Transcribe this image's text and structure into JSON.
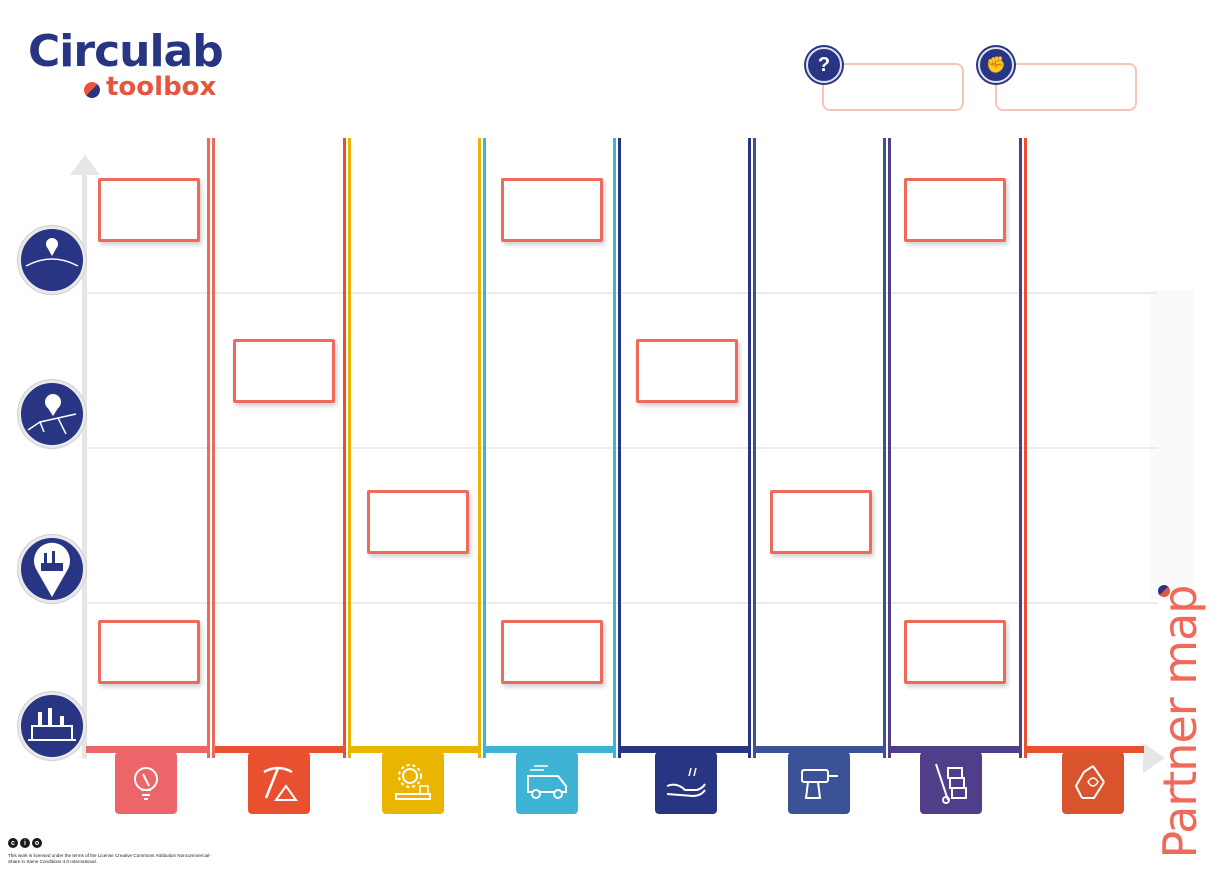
{
  "brand": {
    "name": "Circulab",
    "sub": "toolbox",
    "colors": {
      "navy": "#283583",
      "coral": "#e8553e",
      "note_border": "#ef6a5a"
    }
  },
  "header_fields": [
    {
      "icon": "question-icon",
      "glyph": "?",
      "value": ""
    },
    {
      "icon": "handshake-icon",
      "glyph": "✊",
      "value": ""
    }
  ],
  "title": "Partner map",
  "levels": [
    {
      "name": "global-level-icon"
    },
    {
      "name": "regional-level-icon"
    },
    {
      "name": "local-level-icon"
    },
    {
      "name": "site-level-icon"
    }
  ],
  "categories": [
    {
      "name": "ideation-icon",
      "color": "#ec6568"
    },
    {
      "name": "extraction-icon",
      "color": "#e9502f"
    },
    {
      "name": "manufacturing-icon",
      "color": "#eab500"
    },
    {
      "name": "distribution-icon",
      "color": "#3eb3d3"
    },
    {
      "name": "service-icon",
      "color": "#283583"
    },
    {
      "name": "use-icon",
      "color": "#3b5396"
    },
    {
      "name": "logistics-icon",
      "color": "#503e8a"
    },
    {
      "name": "recycling-icon",
      "color": "#d9542c"
    }
  ],
  "rails": [
    {
      "a": "#ef6a5a",
      "b": "#ef6a5a"
    },
    {
      "a": "#e9502f",
      "b": "#eab500"
    },
    {
      "a": "#eab500",
      "b": "#3eb3d3"
    },
    {
      "a": "#3eb3d3",
      "b": "#283583"
    },
    {
      "a": "#283583",
      "b": "#3b5396"
    },
    {
      "a": "#3b5396",
      "b": "#503e8a"
    },
    {
      "a": "#503e8a",
      "b": "#e9502f"
    }
  ],
  "license": {
    "badges": [
      "c",
      "i",
      "o"
    ],
    "text": "This work is licensed under the terms of the License Creative Commons Attribution Noncommercial-Share in Same Conditions 4.0 International."
  }
}
